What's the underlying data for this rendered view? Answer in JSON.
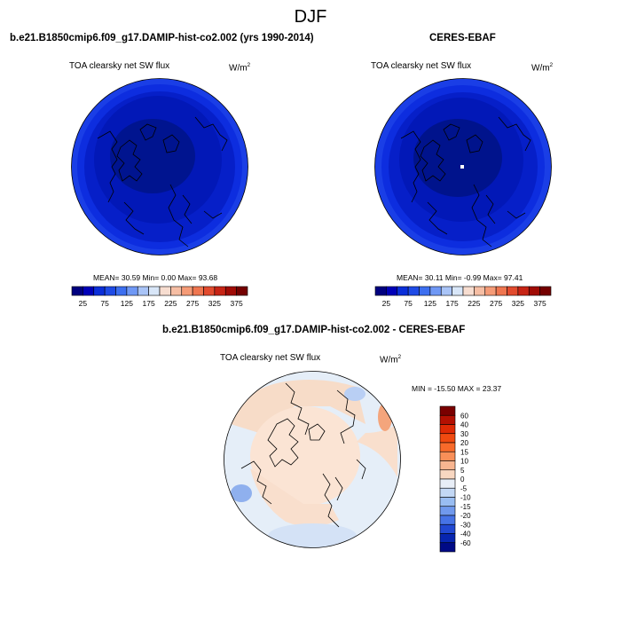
{
  "title": "DJF",
  "panels": [
    {
      "subtitle": "b.e21.B1850cmip6.f09_g17.DAMIP-hist-co2.002 (yrs 1990-2014)",
      "var_label": "TOA clearsky net SW flux",
      "units_base": "W/m",
      "units_exp": "2",
      "stats": "MEAN=  30.59  Min=   0.00  Max=  93.68"
    },
    {
      "subtitle": "CERES-EBAF",
      "var_label": "TOA clearsky net SW flux",
      "units_base": "W/m",
      "units_exp": "2",
      "stats": "MEAN=  30.11  Min=  -0.99  Max=  97.41"
    },
    {
      "subtitle": "b.e21.B1850cmip6.f09_g17.DAMIP-hist-co2.002 - CERES-EBAF",
      "var_label": "TOA clearsky net SW flux",
      "units_base": "W/m",
      "units_exp": "2",
      "stats": "MIN = -15.50 MAX =  23.37"
    }
  ],
  "chart_data": [
    {
      "type": "heatmap",
      "projection": "north-polar-stereographic",
      "title": "b.e21.B1850cmip6.f09_g17.DAMIP-hist-co2.002 (yrs 1990-2014)",
      "variable": "TOA clearsky net SW flux",
      "units": "W/m2",
      "mean": 30.59,
      "min": 0.0,
      "max": 93.68,
      "colorbar": {
        "orientation": "horizontal",
        "tick_labels": [
          "25",
          "75",
          "125",
          "175",
          "225",
          "275",
          "325",
          "375"
        ],
        "colors": [
          "#00007f",
          "#0000b8",
          "#0b2fd9",
          "#1f4be6",
          "#3d6ff0",
          "#6f98f5",
          "#a9c4f7",
          "#d8e6f8",
          "#f7ddd0",
          "#f6bea4",
          "#f59b77",
          "#ef7650",
          "#e24b2e",
          "#c72415",
          "#a00b05",
          "#740000"
        ]
      }
    },
    {
      "type": "heatmap",
      "projection": "north-polar-stereographic",
      "title": "CERES-EBAF",
      "variable": "TOA clearsky net SW flux",
      "units": "W/m2",
      "mean": 30.11,
      "min": -0.99,
      "max": 97.41,
      "colorbar": {
        "orientation": "horizontal",
        "tick_labels": [
          "25",
          "75",
          "125",
          "175",
          "225",
          "275",
          "325",
          "375"
        ],
        "colors": [
          "#00007f",
          "#0000b8",
          "#0b2fd9",
          "#1f4be6",
          "#3d6ff0",
          "#6f98f5",
          "#a9c4f7",
          "#d8e6f8",
          "#f7ddd0",
          "#f6bea4",
          "#f59b77",
          "#ef7650",
          "#e24b2e",
          "#c72415",
          "#a00b05",
          "#740000"
        ]
      }
    },
    {
      "type": "heatmap",
      "projection": "north-polar-stereographic",
      "title": "b.e21.B1850cmip6.f09_g17.DAMIP-hist-co2.002 - CERES-EBAF",
      "variable": "TOA clearsky net SW flux",
      "units": "W/m2",
      "min": -15.5,
      "max": 23.37,
      "colorbar": {
        "orientation": "vertical",
        "tick_labels": [
          "60",
          "40",
          "30",
          "20",
          "15",
          "10",
          "5",
          "0",
          "-5",
          "-10",
          "-15",
          "-20",
          "-30",
          "-40",
          "-60"
        ],
        "colors": [
          "#7a0000",
          "#b31002",
          "#de2a05",
          "#f04a10",
          "#f86a2a",
          "#f98f58",
          "#f8b590",
          "#f8d7c1",
          "#e8eef7",
          "#c3d8f5",
          "#99bdf2",
          "#7099ed",
          "#4673e6",
          "#2148d2",
          "#0725b0",
          "#000a86"
        ]
      }
    }
  ]
}
